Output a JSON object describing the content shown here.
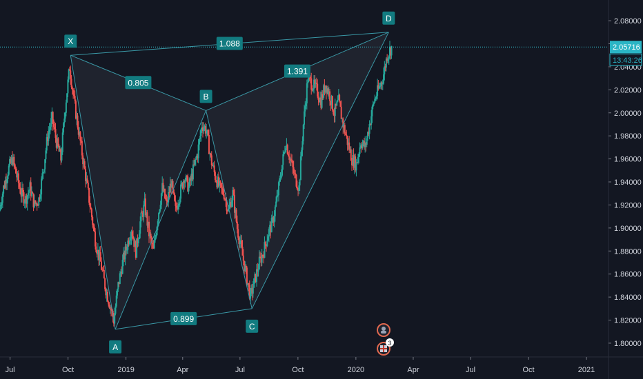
{
  "chart_data": {
    "type": "candlestick",
    "title": "",
    "colors": {
      "background": "#131722",
      "up": "#26a69a",
      "down": "#ef5350",
      "pattern": "#3a98a6",
      "label_bg": "#127b80",
      "price_line": "#33c3d1",
      "axis_text": "#d1d4dc"
    },
    "xaxis": {
      "ticks": [
        "Jul",
        "Oct",
        "2019",
        "Apr",
        "Jul",
        "Oct",
        "2020",
        "Apr",
        "Jul",
        "Oct",
        "2021"
      ],
      "tick_dates": [
        "2018-07-01",
        "2018-10-01",
        "2019-01-01",
        "2019-04-01",
        "2019-07-01",
        "2019-10-01",
        "2020-01-01",
        "2020-04-01",
        "2020-07-01",
        "2020-10-01",
        "2021-01-01"
      ],
      "range": [
        "2018-06-15",
        "2021-02-05"
      ]
    },
    "yaxis": {
      "ticks": [
        "2.08000",
        "2.06000",
        "2.04000",
        "2.02000",
        "2.00000",
        "1.98000",
        "1.96000",
        "1.94000",
        "1.92000",
        "1.90000",
        "1.88000",
        "1.86000",
        "1.84000",
        "1.82000",
        "1.80000"
      ],
      "range": [
        1.788,
        2.098
      ],
      "position": "right",
      "scale": "linear"
    },
    "current_price": {
      "label": "2.05716",
      "value": 2.05716,
      "countdown": "13:43:26"
    },
    "pattern": {
      "points": [
        {
          "label": "X",
          "date": "2018-10-05",
          "value": 2.05
        },
        {
          "label": "A",
          "date": "2018-12-15",
          "value": 1.812
        },
        {
          "label": "B",
          "date": "2019-05-08",
          "value": 2.002
        },
        {
          "label": "C",
          "date": "2019-07-20",
          "value": 1.83
        },
        {
          "label": "D",
          "date": "2020-02-22",
          "value": 2.07
        }
      ],
      "ratios": [
        {
          "label": "0.805",
          "from": "X",
          "to": "B"
        },
        {
          "label": "0.899",
          "from": "A",
          "to": "C"
        },
        {
          "label": "1.391",
          "from": "B",
          "to": "D"
        },
        {
          "label": "1.088",
          "from": "X",
          "to": "D"
        }
      ]
    },
    "series": [
      {
        "type": "candle",
        "data": [
          {
            "date": "2018-06-15",
            "value": 1.915
          },
          {
            "date": "2018-06-22",
            "value": 1.935
          },
          {
            "date": "2018-06-29",
            "value": 1.95
          },
          {
            "date": "2018-07-06",
            "value": 1.96
          },
          {
            "date": "2018-07-13",
            "value": 1.945
          },
          {
            "date": "2018-07-20",
            "value": 1.93
          },
          {
            "date": "2018-07-27",
            "value": 1.925
          },
          {
            "date": "2018-08-03",
            "value": 1.935
          },
          {
            "date": "2018-08-10",
            "value": 1.92
          },
          {
            "date": "2018-08-17",
            "value": 1.925
          },
          {
            "date": "2018-08-24",
            "value": 1.95
          },
          {
            "date": "2018-08-31",
            "value": 1.98
          },
          {
            "date": "2018-09-07",
            "value": 1.995
          },
          {
            "date": "2018-09-14",
            "value": 1.975
          },
          {
            "date": "2018-09-21",
            "value": 1.96
          },
          {
            "date": "2018-09-28",
            "value": 2.005
          },
          {
            "date": "2018-10-05",
            "value": 2.04
          },
          {
            "date": "2018-10-12",
            "value": 2.01
          },
          {
            "date": "2018-10-19",
            "value": 1.985
          },
          {
            "date": "2018-10-26",
            "value": 1.96
          },
          {
            "date": "2018-11-02",
            "value": 1.935
          },
          {
            "date": "2018-11-09",
            "value": 1.91
          },
          {
            "date": "2018-11-16",
            "value": 1.885
          },
          {
            "date": "2018-11-23",
            "value": 1.87
          },
          {
            "date": "2018-11-30",
            "value": 1.85
          },
          {
            "date": "2018-12-07",
            "value": 1.835
          },
          {
            "date": "2018-12-14",
            "value": 1.82
          },
          {
            "date": "2018-12-21",
            "value": 1.85
          },
          {
            "date": "2018-12-28",
            "value": 1.87
          },
          {
            "date": "2019-01-04",
            "value": 1.885
          },
          {
            "date": "2019-01-11",
            "value": 1.9
          },
          {
            "date": "2019-01-18",
            "value": 1.88
          },
          {
            "date": "2019-01-25",
            "value": 1.905
          },
          {
            "date": "2019-02-01",
            "value": 1.92
          },
          {
            "date": "2019-02-08",
            "value": 1.895
          },
          {
            "date": "2019-02-15",
            "value": 1.88
          },
          {
            "date": "2019-02-22",
            "value": 1.91
          },
          {
            "date": "2019-03-01",
            "value": 1.935
          },
          {
            "date": "2019-03-08",
            "value": 1.92
          },
          {
            "date": "2019-03-15",
            "value": 1.94
          },
          {
            "date": "2019-03-22",
            "value": 1.915
          },
          {
            "date": "2019-03-29",
            "value": 1.93
          },
          {
            "date": "2019-04-05",
            "value": 1.945
          },
          {
            "date": "2019-04-12",
            "value": 1.935
          },
          {
            "date": "2019-04-19",
            "value": 1.95
          },
          {
            "date": "2019-04-26",
            "value": 1.965
          },
          {
            "date": "2019-05-03",
            "value": 1.99
          },
          {
            "date": "2019-05-10",
            "value": 1.985
          },
          {
            "date": "2019-05-17",
            "value": 1.96
          },
          {
            "date": "2019-05-24",
            "value": 1.945
          },
          {
            "date": "2019-05-31",
            "value": 1.935
          },
          {
            "date": "2019-06-07",
            "value": 1.93
          },
          {
            "date": "2019-06-14",
            "value": 1.915
          },
          {
            "date": "2019-06-21",
            "value": 1.93
          },
          {
            "date": "2019-06-28",
            "value": 1.9
          },
          {
            "date": "2019-07-05",
            "value": 1.88
          },
          {
            "date": "2019-07-12",
            "value": 1.86
          },
          {
            "date": "2019-07-19",
            "value": 1.84
          },
          {
            "date": "2019-07-26",
            "value": 1.855
          },
          {
            "date": "2019-08-02",
            "value": 1.87
          },
          {
            "date": "2019-08-09",
            "value": 1.88
          },
          {
            "date": "2019-08-16",
            "value": 1.895
          },
          {
            "date": "2019-08-23",
            "value": 1.905
          },
          {
            "date": "2019-08-30",
            "value": 1.925
          },
          {
            "date": "2019-09-06",
            "value": 1.95
          },
          {
            "date": "2019-09-13",
            "value": 1.975
          },
          {
            "date": "2019-09-20",
            "value": 1.96
          },
          {
            "date": "2019-09-27",
            "value": 1.945
          },
          {
            "date": "2019-10-04",
            "value": 1.935
          },
          {
            "date": "2019-10-11",
            "value": 1.99
          },
          {
            "date": "2019-10-18",
            "value": 2.03
          },
          {
            "date": "2019-10-25",
            "value": 2.025
          },
          {
            "date": "2019-11-01",
            "value": 2.02
          },
          {
            "date": "2019-11-08",
            "value": 2.01
          },
          {
            "date": "2019-11-15",
            "value": 2.025
          },
          {
            "date": "2019-11-22",
            "value": 2.015
          },
          {
            "date": "2019-11-29",
            "value": 2.0
          },
          {
            "date": "2019-12-06",
            "value": 2.01
          },
          {
            "date": "2019-12-13",
            "value": 1.99
          },
          {
            "date": "2019-12-20",
            "value": 1.975
          },
          {
            "date": "2019-12-27",
            "value": 1.96
          },
          {
            "date": "2020-01-03",
            "value": 1.955
          },
          {
            "date": "2020-01-10",
            "value": 1.975
          },
          {
            "date": "2020-01-17",
            "value": 1.97
          },
          {
            "date": "2020-01-24",
            "value": 1.99
          },
          {
            "date": "2020-01-31",
            "value": 2.01
          },
          {
            "date": "2020-02-07",
            "value": 2.02
          },
          {
            "date": "2020-02-14",
            "value": 2.03
          },
          {
            "date": "2020-02-21",
            "value": 2.05
          },
          {
            "date": "2020-02-28",
            "value": 2.057
          }
        ]
      }
    ],
    "legend": "none",
    "grid": false
  },
  "events": {
    "badge_count": "3"
  }
}
